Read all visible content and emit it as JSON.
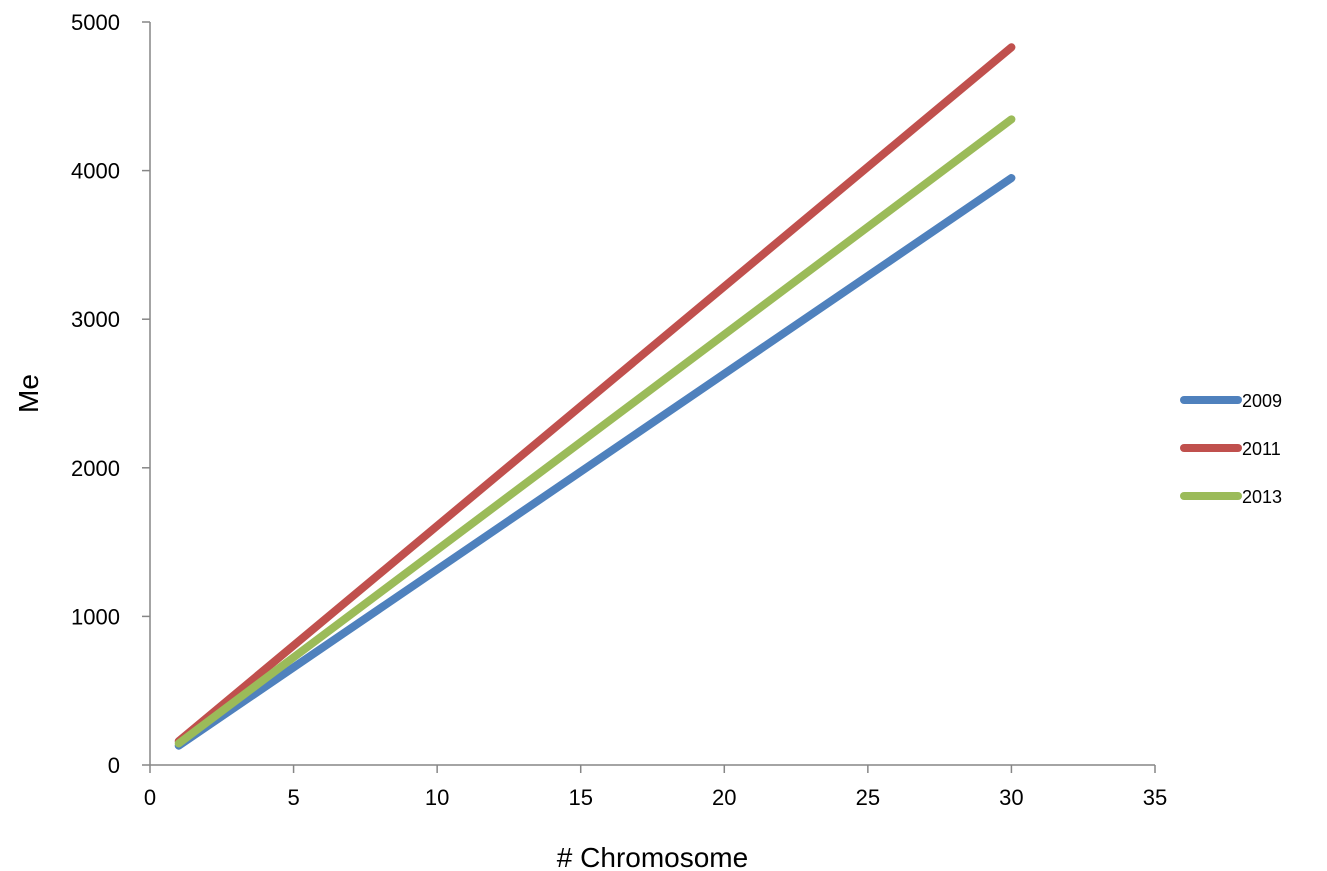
{
  "chart_data": {
    "type": "line",
    "title": "",
    "xlabel": "# Chromosome",
    "ylabel": "Me",
    "xlim": [
      0,
      35
    ],
    "ylim": [
      0,
      5000
    ],
    "xticks": [
      0,
      5,
      10,
      15,
      20,
      25,
      30,
      35
    ],
    "yticks": [
      0,
      1000,
      2000,
      3000,
      4000,
      5000
    ],
    "grid": false,
    "legend_position": "right",
    "series": [
      {
        "name": "2009",
        "color": "#4F81BD",
        "x": [
          1,
          30
        ],
        "y": [
          130,
          3950
        ]
      },
      {
        "name": "2011",
        "color": "#C0504D",
        "x": [
          1,
          30
        ],
        "y": [
          160,
          4830
        ]
      },
      {
        "name": "2013",
        "color": "#9BBB59",
        "x": [
          1,
          30
        ],
        "y": [
          145,
          4345
        ]
      }
    ]
  }
}
